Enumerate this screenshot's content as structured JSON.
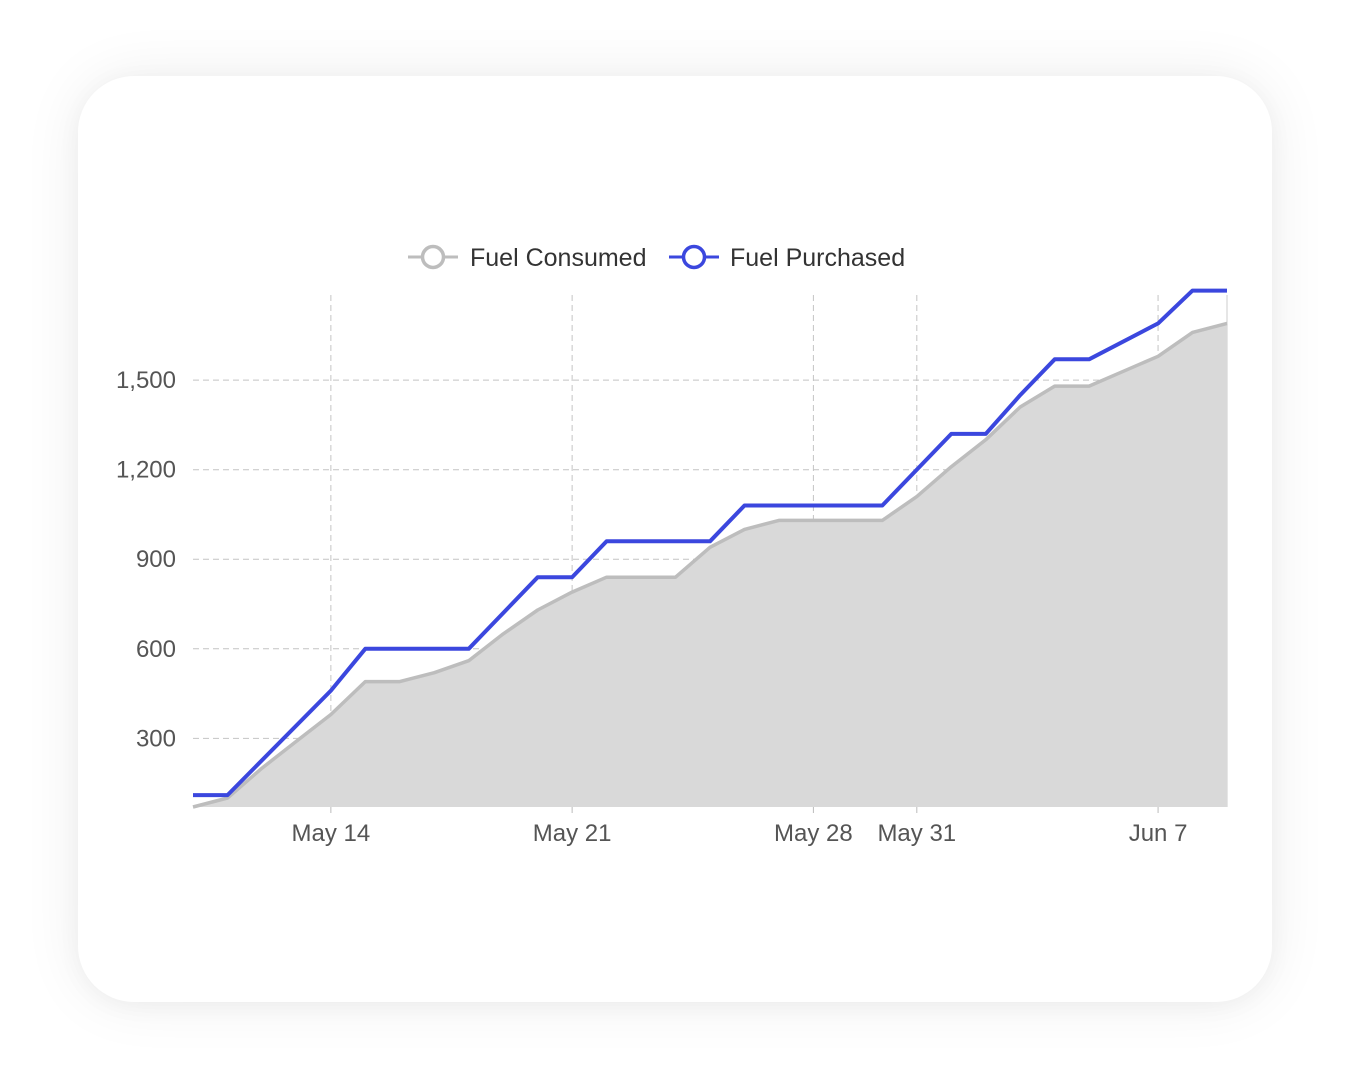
{
  "chart_data": {
    "type": "line",
    "title": "",
    "xlabel": "",
    "ylabel": "",
    "x_ticks": [
      "May 14",
      "May 21",
      "May 28",
      "May 31",
      "Jun 7"
    ],
    "y_ticks": [
      "300",
      "600",
      "900",
      "1,200",
      "1,500"
    ],
    "y_tick_values": [
      300,
      600,
      900,
      1200,
      1500
    ],
    "ylim": [
      70,
      1700
    ],
    "xlim": [
      "May 10",
      "Jun 9"
    ],
    "grid": true,
    "legend": "top-center",
    "series": [
      {
        "name": "Fuel Consumed",
        "style": "area",
        "color": "#bdbdbd",
        "fill": "#d9d9d9",
        "points": [
          [
            "May 10",
            70
          ],
          [
            "May 11",
            100
          ],
          [
            "May 12",
            200
          ],
          [
            "May 13",
            290
          ],
          [
            "May 14",
            380
          ],
          [
            "May 15",
            490
          ],
          [
            "May 16",
            490
          ],
          [
            "May 17",
            520
          ],
          [
            "May 18",
            560
          ],
          [
            "May 19",
            650
          ],
          [
            "May 20",
            730
          ],
          [
            "May 21",
            790
          ],
          [
            "May 22",
            840
          ],
          [
            "May 23",
            840
          ],
          [
            "May 24",
            840
          ],
          [
            "May 25",
            940
          ],
          [
            "May 26",
            1000
          ],
          [
            "May 27",
            1030
          ],
          [
            "May 28",
            1030
          ],
          [
            "May 29",
            1030
          ],
          [
            "May 30",
            1030
          ],
          [
            "May 31",
            1110
          ],
          [
            "Jun 1",
            1210
          ],
          [
            "Jun 2",
            1300
          ],
          [
            "Jun 3",
            1410
          ],
          [
            "Jun 4",
            1480
          ],
          [
            "Jun 5",
            1480
          ],
          [
            "Jun 6",
            1530
          ],
          [
            "Jun 7",
            1580
          ],
          [
            "Jun 8",
            1660
          ],
          [
            "Jun 9",
            1690
          ]
        ]
      },
      {
        "name": "Fuel Purchased",
        "style": "line",
        "color": "#3b47de",
        "points": [
          [
            "May 10",
            110
          ],
          [
            "May 11",
            110
          ],
          [
            "May 14",
            460
          ],
          [
            "May 15",
            600
          ],
          [
            "May 18",
            600
          ],
          [
            "May 20",
            840
          ],
          [
            "May 21",
            840
          ],
          [
            "May 22",
            960
          ],
          [
            "May 25",
            960
          ],
          [
            "May 26",
            1080
          ],
          [
            "May 30",
            1080
          ],
          [
            "Jun 1",
            1320
          ],
          [
            "Jun 2",
            1320
          ],
          [
            "Jun 3",
            1450
          ],
          [
            "Jun 4",
            1570
          ],
          [
            "Jun 5",
            1570
          ],
          [
            "Jun 7",
            1690
          ],
          [
            "Jun 8",
            1800
          ],
          [
            "Jun 9",
            1800
          ]
        ]
      }
    ]
  }
}
